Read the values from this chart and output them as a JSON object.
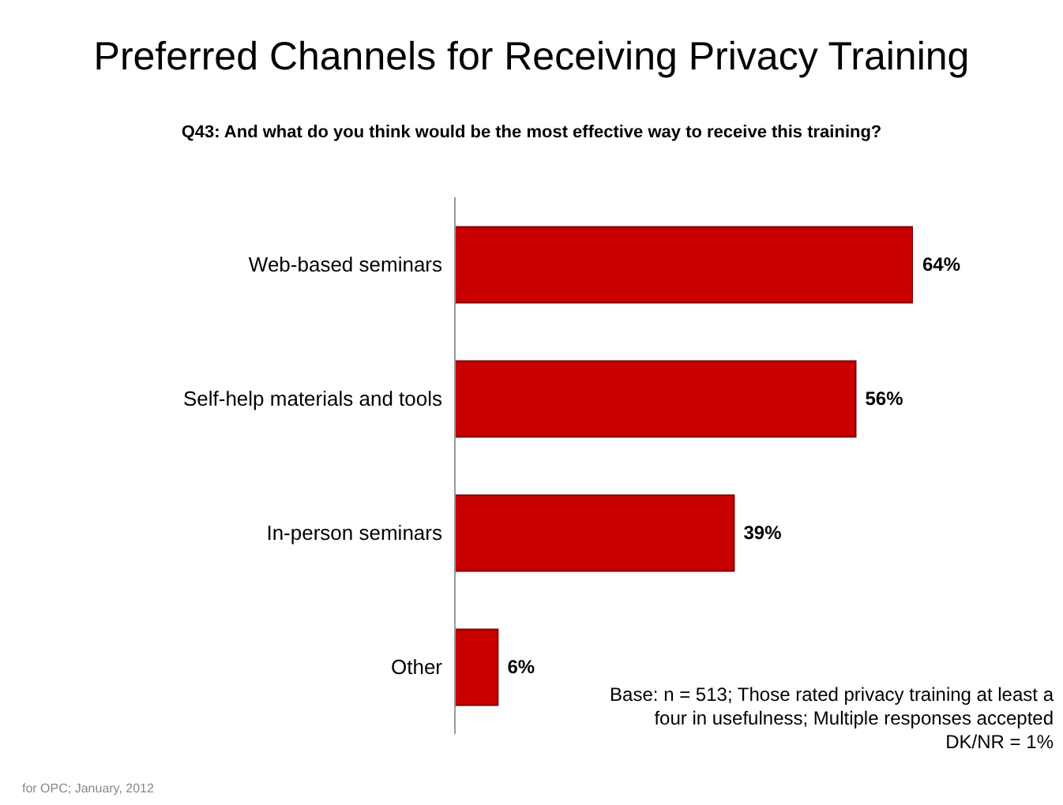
{
  "chart_data": {
    "type": "bar",
    "orientation": "horizontal",
    "title": "Preferred Channels for Receiving Privacy Training",
    "subtitle": "Q43: And what do you think would be the most effective way to receive this training?",
    "categories": [
      "Web-based seminars",
      "Self-help materials and tools",
      "In-person seminars",
      "Other"
    ],
    "values": [
      64,
      56,
      39,
      6
    ],
    "value_labels": [
      "64%",
      "56%",
      "39%",
      "6%"
    ],
    "color": "#c80000",
    "tick_labels": "y",
    "annotations": [
      "Base: n = 513; Those rated privacy training at least a four in usefulness; Multiple responses accepted",
      "DK/NR = 1%",
      "for OPC; January, 2012"
    ]
  }
}
